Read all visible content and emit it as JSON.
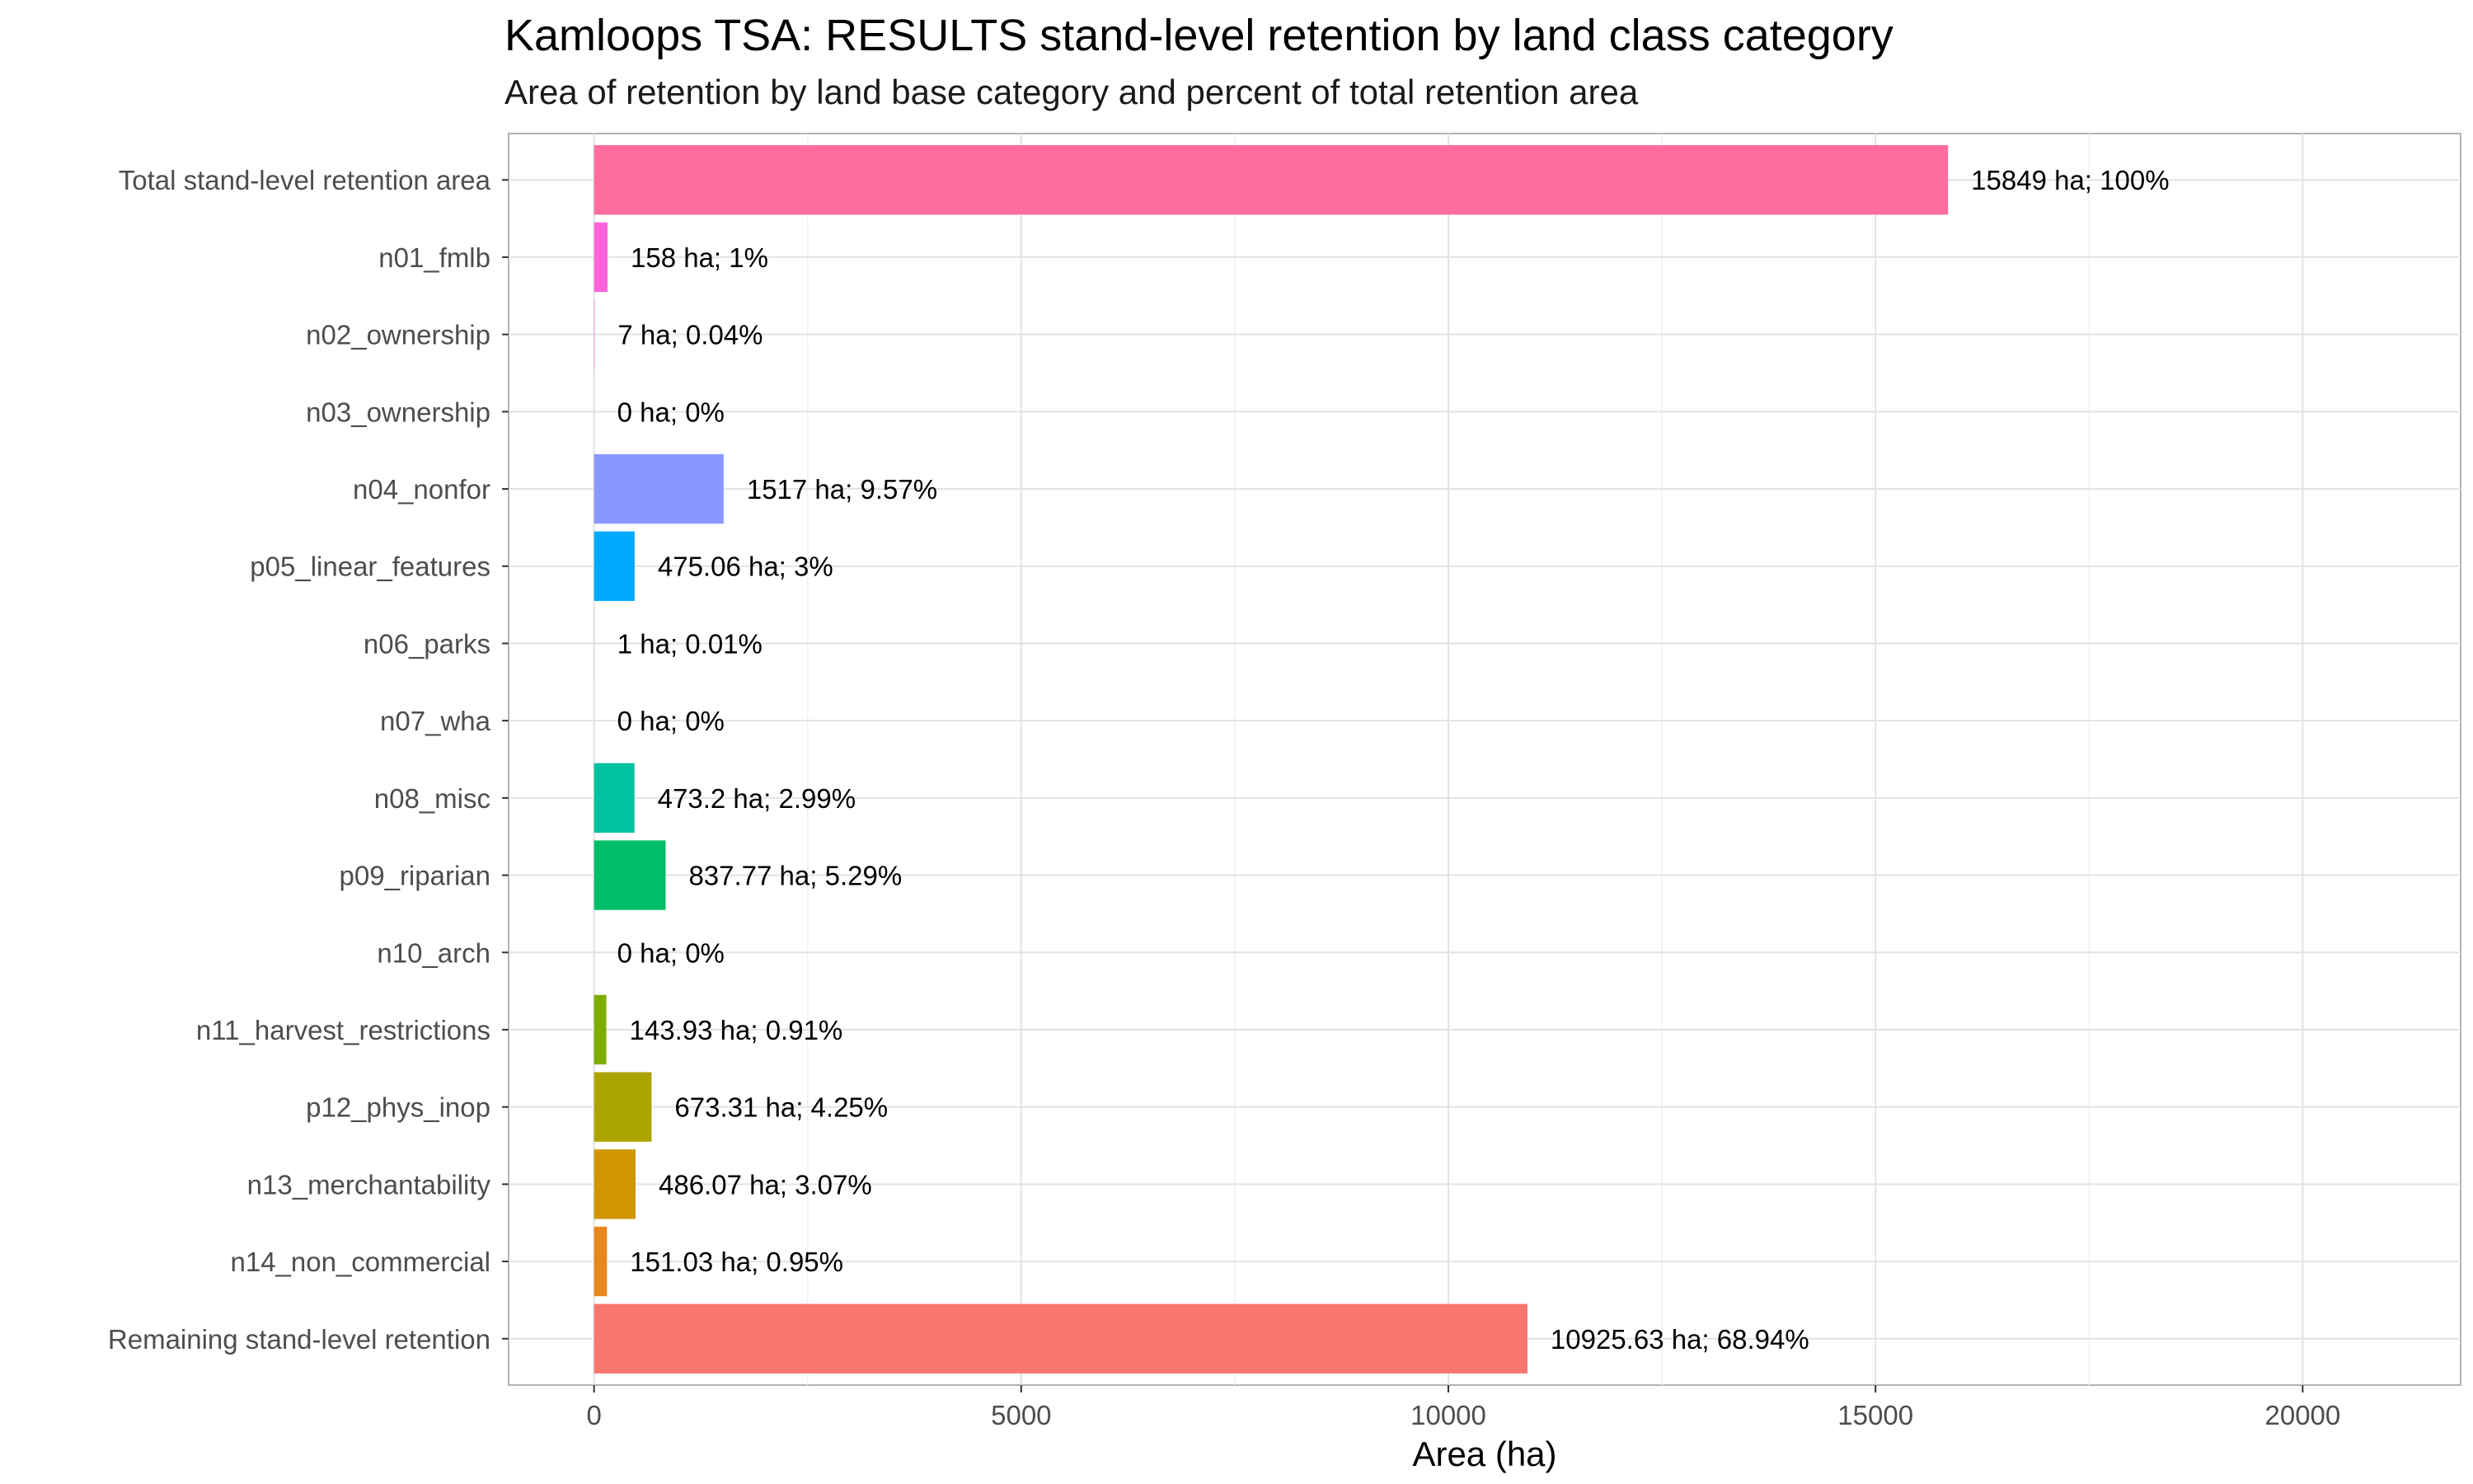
{
  "chart_data": {
    "type": "bar",
    "orientation": "horizontal",
    "title": "Kamloops TSA: RESULTS stand-level retention by land class category",
    "subtitle": "Area of retention by land base category and percent of total retention area",
    "xlabel": "Area (ha)",
    "ylabel": "",
    "xlim": [
      -1000,
      21849
    ],
    "xticks": [
      0,
      5000,
      10000,
      15000,
      20000
    ],
    "xtick_labels": [
      "0",
      "5000",
      "10000",
      "15000",
      "20000"
    ],
    "grid": true,
    "legend": "none",
    "categories": [
      "Total stand-level retention area",
      "n01_fmlb",
      "n02_ownership",
      "n03_ownership",
      "n04_nonfor",
      "p05_linear_features",
      "n06_parks",
      "n07_wha",
      "n08_misc",
      "p09_riparian",
      "n10_arch",
      "n11_harvest_restrictions",
      "p12_phys_inop",
      "n13_merchantability",
      "n14_non_commercial",
      "Remaining stand-level retention"
    ],
    "values": [
      15849,
      158,
      7,
      0,
      1517,
      475.06,
      1,
      0,
      473.2,
      837.77,
      0,
      143.93,
      673.31,
      486.07,
      151.03,
      10925.63
    ],
    "data_labels": [
      "15849 ha; 100%",
      "158 ha; 1%",
      "7 ha; 0.04%",
      "0 ha; 0%",
      "1517 ha; 9.57%",
      "475.06 ha; 3%",
      "1 ha; 0.01%",
      "0 ha; 0%",
      "473.2 ha; 2.99%",
      "837.77 ha; 5.29%",
      "0 ha; 0%",
      "143.93 ha; 0.91%",
      "673.31 ha; 4.25%",
      "486.07 ha; 3.07%",
      "151.03 ha; 0.95%",
      "10925.63 ha; 68.94%"
    ],
    "colors": [
      "#FF6C9E",
      "#FF63D8",
      "#F07AF6",
      "#D28AFF",
      "#8A97FF",
      "#00A9FF",
      "#00B5EA",
      "#00BFC4",
      "#00C1A0",
      "#00BE67",
      "#53B400",
      "#7CAE00",
      "#ACA400",
      "#CF9600",
      "#E7861B",
      "#F8766D"
    ]
  }
}
